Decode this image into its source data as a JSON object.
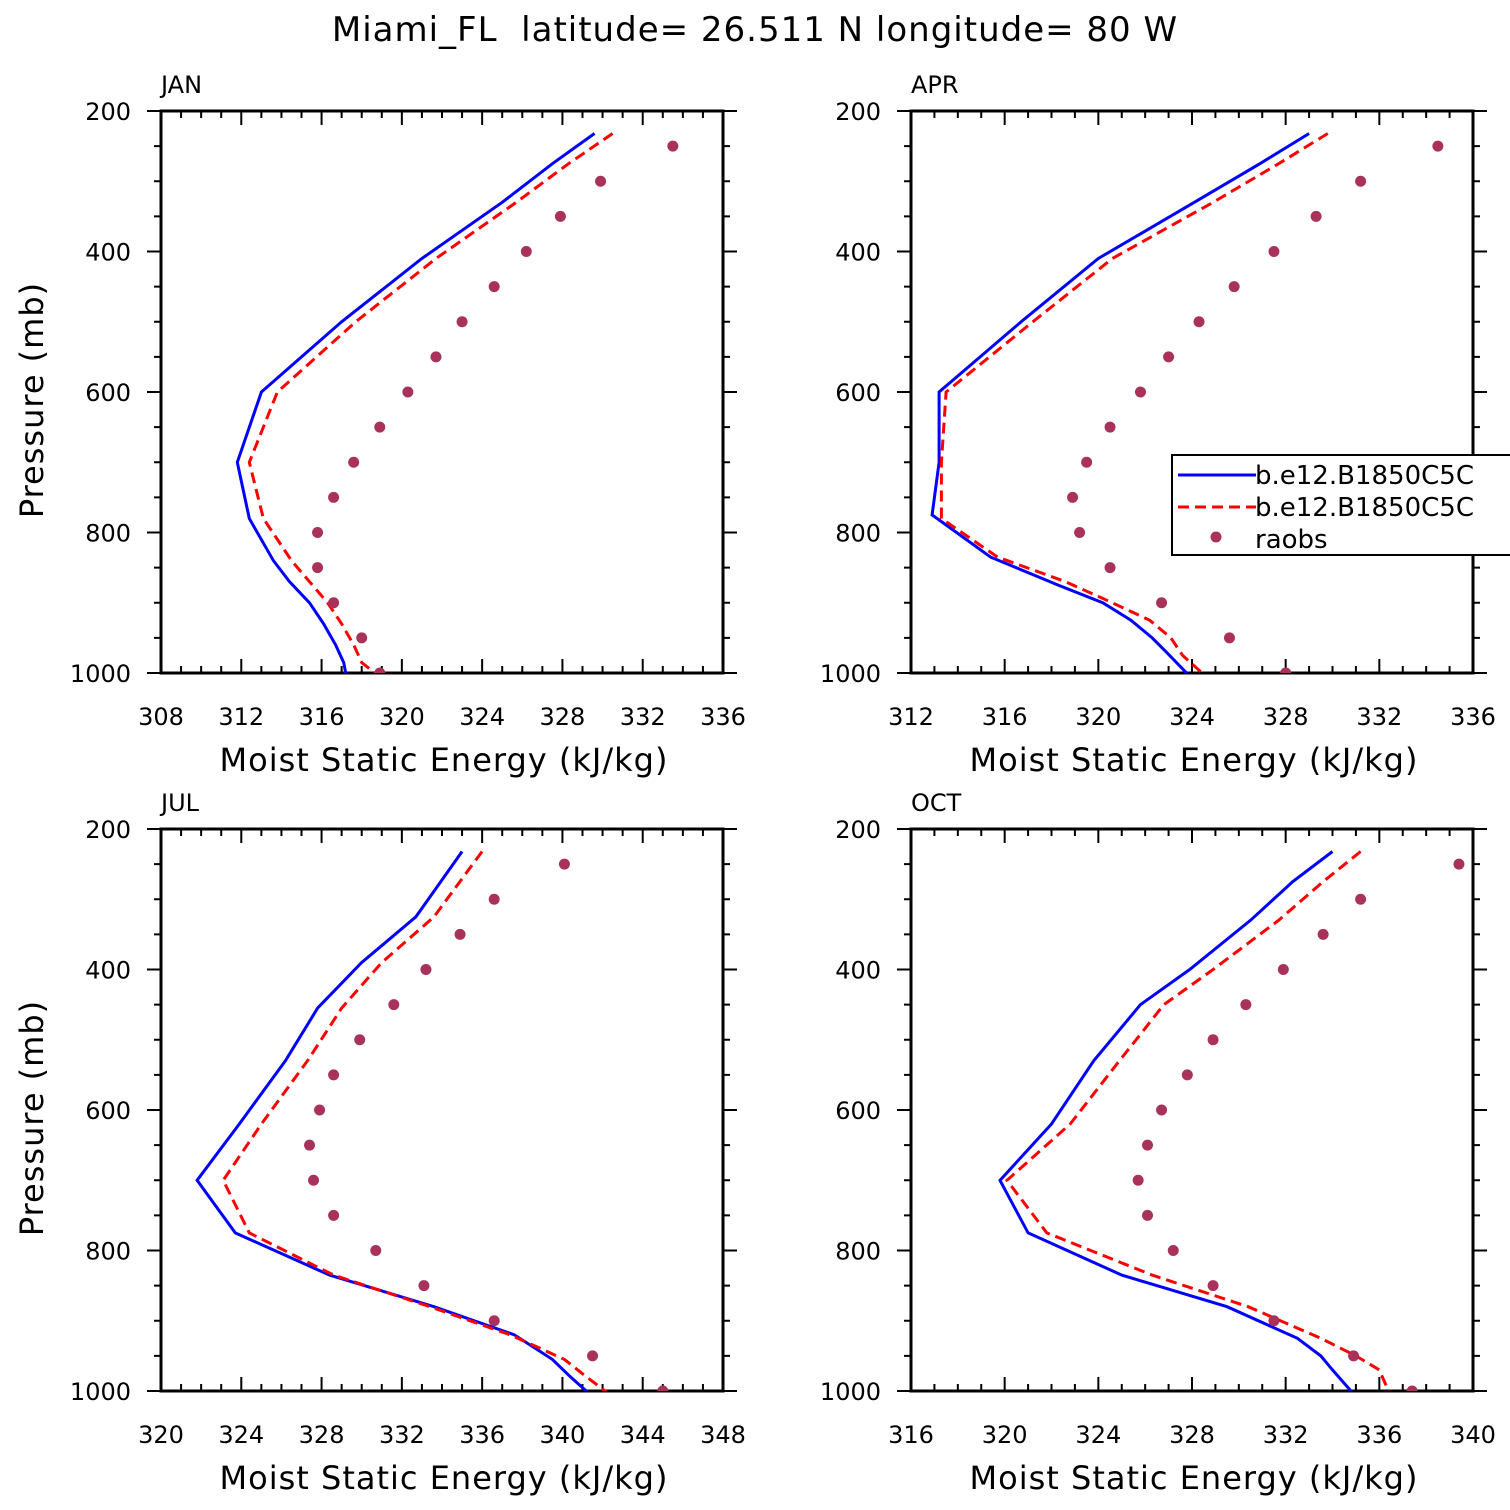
{
  "title": "Miami_FL  latitude= 26.511 N longitude= 80 W",
  "colors": {
    "model_1": "#0000ff",
    "model_2": "#ff0000",
    "raobs": "#a8325a"
  },
  "legend": {
    "placement": "right edge of APR panel",
    "entries": [
      "b.e12.B1850C5C",
      "b.e12.B1850C5C",
      "raobs"
    ]
  },
  "chart_data": [
    {
      "type": "line",
      "panel_title": "JAN",
      "xlabel": "Moist Static Energy (kJ/kg)",
      "ylabel": "Pressure (mb)",
      "xlim": [
        308,
        336
      ],
      "ylim": [
        1000,
        200
      ],
      "xticks": [
        308,
        312,
        316,
        320,
        324,
        328,
        332,
        336
      ],
      "yticks": [
        200,
        400,
        600,
        800,
        1000
      ],
      "grid": false,
      "series": [
        {
          "name": "b.e12.B1850C5C",
          "style": "solid",
          "points": [
            [
              329.6,
              232
            ],
            [
              327.5,
              275
            ],
            [
              325,
              330
            ],
            [
              321,
              410
            ],
            [
              317,
              500
            ],
            [
              313,
              600
            ],
            [
              311.8,
              700
            ],
            [
              312.4,
              780
            ],
            [
              313.6,
              840
            ],
            [
              314.4,
              870
            ],
            [
              315.4,
              900
            ],
            [
              316.1,
              930
            ],
            [
              316.7,
              960
            ],
            [
              317.1,
              985
            ],
            [
              317.2,
              1000
            ]
          ]
        },
        {
          "name": "b.e12.B1850C5C",
          "style": "dashed",
          "points": [
            [
              330.5,
              232
            ],
            [
              328.3,
              275
            ],
            [
              325.7,
              330
            ],
            [
              321.7,
              410
            ],
            [
              317.7,
              500
            ],
            [
              313.8,
              600
            ],
            [
              312.4,
              700
            ],
            [
              313.1,
              780
            ],
            [
              314.5,
              840
            ],
            [
              315.4,
              870
            ],
            [
              316.3,
              900
            ],
            [
              317.0,
              930
            ],
            [
              317.6,
              960
            ],
            [
              318.0,
              985
            ],
            [
              319.0,
              1008
            ]
          ]
        },
        {
          "name": "raobs",
          "style": "marker",
          "points": [
            [
              333.5,
              250
            ],
            [
              329.9,
              300
            ],
            [
              327.9,
              350
            ],
            [
              326.2,
              400
            ],
            [
              324.6,
              450
            ],
            [
              323.0,
              500
            ],
            [
              321.7,
              550
            ],
            [
              320.3,
              600
            ],
            [
              318.9,
              650
            ],
            [
              317.6,
              700
            ],
            [
              316.6,
              750
            ],
            [
              315.8,
              800
            ],
            [
              315.8,
              850
            ],
            [
              316.6,
              900
            ],
            [
              318.0,
              950
            ],
            [
              318.9,
              1000
            ]
          ]
        }
      ]
    },
    {
      "type": "line",
      "panel_title": "APR",
      "xlabel": "Moist Static Energy (kJ/kg)",
      "ylabel": "",
      "xlim": [
        312,
        336
      ],
      "ylim": [
        1000,
        200
      ],
      "xticks": [
        312,
        316,
        320,
        324,
        328,
        332,
        336
      ],
      "yticks": [
        200,
        400,
        600,
        800,
        1000
      ],
      "grid": false,
      "series": [
        {
          "name": "b.e12.B1850C5C",
          "style": "solid",
          "points": [
            [
              329.0,
              232
            ],
            [
              326.9,
              275
            ],
            [
              324.1,
              330
            ],
            [
              320.0,
              410
            ],
            [
              316.7,
              500
            ],
            [
              313.2,
              600
            ],
            [
              313.2,
              700
            ],
            [
              312.9,
              775
            ],
            [
              315.4,
              835
            ],
            [
              318.3,
              875
            ],
            [
              320.2,
              900
            ],
            [
              321.4,
              925
            ],
            [
              322.3,
              950
            ],
            [
              322.9,
              970
            ],
            [
              324.0,
              1008
            ]
          ]
        },
        {
          "name": "b.e12.B1850C5C",
          "style": "dashed",
          "points": [
            [
              329.8,
              232
            ],
            [
              327.7,
              275
            ],
            [
              324.9,
              330
            ],
            [
              320.6,
              410
            ],
            [
              317.2,
              500
            ],
            [
              313.5,
              600
            ],
            [
              313.3,
              700
            ],
            [
              313.3,
              780
            ],
            [
              315.7,
              835
            ],
            [
              318.6,
              870
            ],
            [
              320.6,
              900
            ],
            [
              322.2,
              925
            ],
            [
              323.1,
              950
            ],
            [
              323.6,
              975
            ],
            [
              324.7,
              1008
            ]
          ]
        },
        {
          "name": "raobs",
          "style": "marker",
          "points": [
            [
              334.5,
              250
            ],
            [
              331.2,
              300
            ],
            [
              329.3,
              350
            ],
            [
              327.5,
              400
            ],
            [
              325.8,
              450
            ],
            [
              324.3,
              500
            ],
            [
              323.0,
              550
            ],
            [
              321.8,
              600
            ],
            [
              320.5,
              650
            ],
            [
              319.5,
              700
            ],
            [
              318.9,
              750
            ],
            [
              319.2,
              800
            ],
            [
              320.5,
              850
            ],
            [
              322.7,
              900
            ],
            [
              325.6,
              950
            ],
            [
              328.0,
              1000
            ]
          ]
        }
      ]
    },
    {
      "type": "line",
      "panel_title": "JUL",
      "xlabel": "Moist Static Energy (kJ/kg)",
      "ylabel": "Pressure (mb)",
      "xlim": [
        320,
        348
      ],
      "ylim": [
        1000,
        200
      ],
      "xticks": [
        320,
        324,
        328,
        332,
        336,
        340,
        344,
        348
      ],
      "yticks": [
        200,
        400,
        600,
        800,
        1000
      ],
      "grid": false,
      "series": [
        {
          "name": "b.e12.B1850C5C",
          "style": "solid",
          "points": [
            [
              335.0,
              232
            ],
            [
              332.7,
              325
            ],
            [
              330.0,
              390
            ],
            [
              327.8,
              455
            ],
            [
              326.2,
              530
            ],
            [
              323.9,
              620
            ],
            [
              321.8,
              700
            ],
            [
              323.7,
              775
            ],
            [
              328.4,
              835
            ],
            [
              333.6,
              880
            ],
            [
              337.6,
              920
            ],
            [
              339.5,
              955
            ],
            [
              340.4,
              980
            ],
            [
              341.5,
              1008
            ]
          ]
        },
        {
          "name": "b.e12.B1850C5C",
          "style": "dashed",
          "points": [
            [
              336.0,
              232
            ],
            [
              333.6,
              325
            ],
            [
              331.0,
              390
            ],
            [
              329.0,
              455
            ],
            [
              327.3,
              530
            ],
            [
              325.0,
              620
            ],
            [
              323.1,
              700
            ],
            [
              324.4,
              775
            ],
            [
              328.6,
              835
            ],
            [
              333.4,
              880
            ],
            [
              337.4,
              920
            ],
            [
              340.1,
              955
            ],
            [
              341.2,
              980
            ],
            [
              342.5,
              1008
            ]
          ]
        },
        {
          "name": "raobs",
          "style": "marker",
          "points": [
            [
              340.1,
              250
            ],
            [
              336.6,
              300
            ],
            [
              334.9,
              350
            ],
            [
              333.2,
              400
            ],
            [
              331.6,
              450
            ],
            [
              329.9,
              500
            ],
            [
              328.6,
              550
            ],
            [
              327.9,
              600
            ],
            [
              327.4,
              650
            ],
            [
              327.6,
              700
            ],
            [
              328.6,
              750
            ],
            [
              330.7,
              800
            ],
            [
              333.1,
              850
            ],
            [
              336.6,
              900
            ],
            [
              341.5,
              950
            ],
            [
              345.0,
              1000
            ]
          ]
        }
      ]
    },
    {
      "type": "line",
      "panel_title": "OCT",
      "xlabel": "Moist Static Energy (kJ/kg)",
      "ylabel": "",
      "xlim": [
        316,
        340
      ],
      "ylim": [
        1000,
        200
      ],
      "xticks": [
        316,
        320,
        324,
        328,
        332,
        336,
        340
      ],
      "yticks": [
        200,
        400,
        600,
        800,
        1000
      ],
      "grid": false,
      "series": [
        {
          "name": "b.e12.B1850C5C",
          "style": "solid",
          "points": [
            [
              334.0,
              232
            ],
            [
              332.3,
              275
            ],
            [
              330.5,
              330
            ],
            [
              327.9,
              400
            ],
            [
              325.8,
              450
            ],
            [
              323.8,
              530
            ],
            [
              322.0,
              620
            ],
            [
              319.8,
              700
            ],
            [
              321.0,
              775
            ],
            [
              325.0,
              835
            ],
            [
              329.5,
              880
            ],
            [
              332.5,
              925
            ],
            [
              333.5,
              950
            ],
            [
              334.0,
              970
            ],
            [
              335.0,
              1008
            ]
          ]
        },
        {
          "name": "b.e12.B1850C5C",
          "style": "dashed",
          "points": [
            [
              335.2,
              232
            ],
            [
              333.6,
              275
            ],
            [
              331.7,
              330
            ],
            [
              328.9,
              400
            ],
            [
              326.8,
              450
            ],
            [
              324.9,
              530
            ],
            [
              322.8,
              620
            ],
            [
              320.1,
              700
            ],
            [
              321.8,
              775
            ],
            [
              326.3,
              835
            ],
            [
              330.4,
              880
            ],
            [
              333.5,
              925
            ],
            [
              335.0,
              950
            ],
            [
              336.0,
              970
            ],
            [
              336.5,
              1008
            ]
          ]
        },
        {
          "name": "raobs",
          "style": "marker",
          "points": [
            [
              339.4,
              250
            ],
            [
              335.2,
              300
            ],
            [
              333.6,
              350
            ],
            [
              331.9,
              400
            ],
            [
              330.3,
              450
            ],
            [
              328.9,
              500
            ],
            [
              327.8,
              550
            ],
            [
              326.7,
              600
            ],
            [
              326.1,
              650
            ],
            [
              325.7,
              700
            ],
            [
              326.1,
              750
            ],
            [
              327.2,
              800
            ],
            [
              328.9,
              850
            ],
            [
              331.5,
              900
            ],
            [
              334.9,
              950
            ],
            [
              337.4,
              1000
            ]
          ]
        }
      ]
    }
  ]
}
